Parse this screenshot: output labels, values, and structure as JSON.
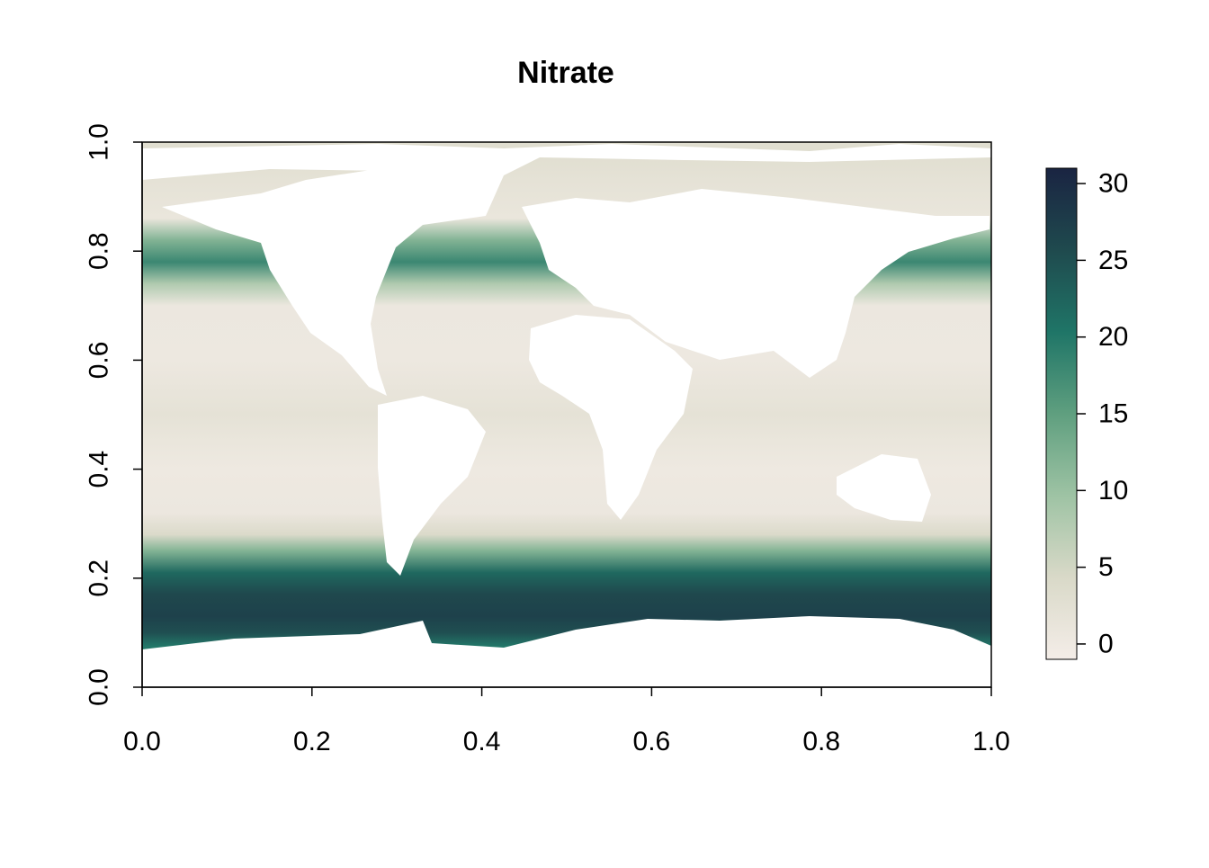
{
  "chart_data": {
    "type": "heatmap",
    "title": "Nitrate",
    "xlabel": "",
    "ylabel": "",
    "xlim": [
      0,
      1
    ],
    "ylim": [
      0,
      1
    ],
    "x_ticks": [
      "0.0",
      "0.2",
      "0.4",
      "0.6",
      "0.8",
      "1.0"
    ],
    "y_ticks": [
      "0.0",
      "0.2",
      "0.4",
      "0.6",
      "0.8",
      "1.0"
    ],
    "x_tick_values": [
      0,
      0.2,
      0.4,
      0.6,
      0.8,
      1.0
    ],
    "y_tick_values": [
      0,
      0.2,
      0.4,
      0.6,
      0.8,
      1.0
    ],
    "colorbar": {
      "min": -1,
      "max": 31,
      "tick_values": [
        0,
        5,
        10,
        15,
        20,
        25,
        30
      ],
      "tick_labels": [
        "0",
        "5",
        "10",
        "15",
        "20",
        "25",
        "30"
      ],
      "colors": [
        "#f4ede8",
        "#d9d9c8",
        "#9ec3a4",
        "#5f9f7f",
        "#1f7567",
        "#1f4a4e",
        "#1a2442"
      ]
    },
    "latitude_bands": [
      {
        "y": 0.98,
        "value": 3
      },
      {
        "y": 0.93,
        "value": 2
      },
      {
        "y": 0.86,
        "value": 1
      },
      {
        "y": 0.82,
        "value": 12
      },
      {
        "y": 0.78,
        "value": 18
      },
      {
        "y": 0.74,
        "value": 8
      },
      {
        "y": 0.7,
        "value": 0.5
      },
      {
        "y": 0.6,
        "value": 0.3
      },
      {
        "y": 0.5,
        "value": 2
      },
      {
        "y": 0.45,
        "value": 1
      },
      {
        "y": 0.4,
        "value": 0.2
      },
      {
        "y": 0.32,
        "value": 0.5
      },
      {
        "y": 0.28,
        "value": 4
      },
      {
        "y": 0.25,
        "value": 12
      },
      {
        "y": 0.21,
        "value": 22
      },
      {
        "y": 0.17,
        "value": 26
      },
      {
        "y": 0.13,
        "value": 27
      },
      {
        "y": 0.1,
        "value": 25
      },
      {
        "y": 0.075,
        "value": 20
      }
    ]
  }
}
